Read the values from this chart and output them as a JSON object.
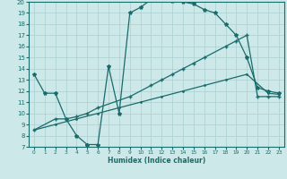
{
  "xlabel": "Humidex (Indice chaleur)",
  "xlim": [
    -0.5,
    23.5
  ],
  "ylim": [
    7,
    20
  ],
  "xticks": [
    0,
    1,
    2,
    3,
    4,
    5,
    6,
    7,
    8,
    9,
    10,
    11,
    12,
    13,
    14,
    15,
    16,
    17,
    18,
    19,
    20,
    21,
    22,
    23
  ],
  "yticks": [
    7,
    8,
    9,
    10,
    11,
    12,
    13,
    14,
    15,
    16,
    17,
    18,
    19,
    20
  ],
  "bg_color": "#cce8e8",
  "grid_color": "#aacfcf",
  "line_color": "#1a6b6b",
  "curve1_x": [
    0,
    1,
    2,
    3,
    4,
    5,
    5,
    6,
    7,
    8,
    9,
    10,
    11,
    12,
    13,
    14,
    15,
    16,
    17,
    18,
    19,
    20,
    21,
    22,
    23
  ],
  "curve1_y": [
    13.5,
    11.8,
    11.8,
    9.5,
    8.0,
    7.2,
    7.2,
    7.2,
    14.2,
    10.0,
    19.0,
    19.5,
    20.2,
    20.2,
    20.1,
    20.0,
    19.8,
    19.3,
    19.0,
    18.0,
    17.0,
    15.0,
    12.3,
    12.0,
    11.8
  ],
  "curve2_x": [
    0,
    2,
    3,
    4,
    5,
    6,
    9,
    11,
    12,
    13,
    14,
    15,
    16,
    18,
    19,
    20,
    21,
    22,
    23
  ],
  "curve2_y": [
    8.5,
    9.5,
    9.5,
    9.7,
    10.0,
    10.5,
    11.5,
    12.5,
    13.0,
    13.5,
    14.0,
    14.5,
    15.0,
    16.0,
    16.5,
    17.0,
    11.5,
    11.5,
    11.5
  ],
  "curve3_x": [
    0,
    2,
    4,
    6,
    8,
    10,
    12,
    14,
    16,
    18,
    20,
    22,
    23
  ],
  "curve3_y": [
    8.5,
    9.0,
    9.5,
    10.0,
    10.5,
    11.0,
    11.5,
    12.0,
    12.5,
    13.0,
    13.5,
    11.8,
    11.7
  ]
}
